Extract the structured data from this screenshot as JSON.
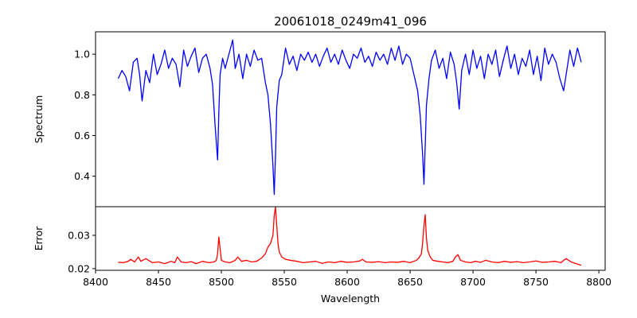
{
  "chart_data": [
    {
      "type": "line",
      "panel": "top",
      "title": "20061018_0249m41_096",
      "xlabel": "",
      "ylabel": "Spectrum",
      "xlim": [
        8400,
        8805
      ],
      "ylim": [
        0.25,
        1.11
      ],
      "xticks": [
        8400,
        8450,
        8500,
        8550,
        8600,
        8650,
        8700,
        8750,
        8800
      ],
      "yticks": [
        0.4,
        0.6,
        0.8,
        1.0
      ],
      "ytick_labels": [
        "0.4",
        "0.6",
        "0.8",
        "1.0"
      ],
      "color": "#0000ff",
      "series": [
        {
          "x": [
            8418,
            8421,
            8424,
            8427,
            8430,
            8433,
            8435,
            8437,
            8440,
            8443,
            8446,
            8449,
            8452,
            8455,
            8458,
            8461,
            8464,
            8467,
            8470,
            8473,
            8476,
            8479,
            8482,
            8485,
            8488,
            8491,
            8493,
            8495,
            8497,
            8498,
            8499,
            8501,
            8503,
            8506,
            8509,
            8511,
            8514,
            8517,
            8520,
            8523,
            8526,
            8529,
            8532,
            8535,
            8537,
            8539,
            8541,
            8542,
            8543,
            8544,
            8546,
            8548,
            8551,
            8554,
            8557,
            8560,
            8563,
            8566,
            8569,
            8572,
            8575,
            8578,
            8581,
            8584,
            8587,
            8590,
            8593,
            8596,
            8599,
            8602,
            8605,
            8608,
            8611,
            8614,
            8617,
            8620,
            8623,
            8626,
            8629,
            8632,
            8635,
            8638,
            8641,
            8644,
            8647,
            8650,
            8653,
            8656,
            8658,
            8660,
            8661,
            8662,
            8663,
            8665,
            8667,
            8670,
            8673,
            8676,
            8679,
            8682,
            8685,
            8687,
            8689,
            8691,
            8694,
            8697,
            8700,
            8703,
            8706,
            8709,
            8712,
            8715,
            8718,
            8721,
            8724,
            8727,
            8730,
            8733,
            8736,
            8739,
            8742,
            8745,
            8748,
            8751,
            8754,
            8757,
            8760,
            8763,
            8766,
            8769,
            8772,
            8774,
            8777,
            8780,
            8783,
            8786
          ],
          "y": [
            0.88,
            0.92,
            0.89,
            0.82,
            0.96,
            0.98,
            0.9,
            0.77,
            0.92,
            0.86,
            1.0,
            0.9,
            0.95,
            1.02,
            0.93,
            0.98,
            0.95,
            0.84,
            1.02,
            0.94,
            0.99,
            1.03,
            0.91,
            0.98,
            1.0,
            0.93,
            0.85,
            0.65,
            0.48,
            0.72,
            0.9,
            0.98,
            0.93,
            1.0,
            1.07,
            0.93,
            1.0,
            0.88,
            1.0,
            0.94,
            1.02,
            0.97,
            0.98,
            0.86,
            0.8,
            0.66,
            0.45,
            0.31,
            0.5,
            0.74,
            0.87,
            0.9,
            1.03,
            0.95,
            0.99,
            0.92,
            1.0,
            0.97,
            1.01,
            0.96,
            1.0,
            0.94,
            0.99,
            1.03,
            0.96,
            1.0,
            0.95,
            1.02,
            0.97,
            0.93,
            1.0,
            0.98,
            1.03,
            0.96,
            0.99,
            0.94,
            1.01,
            0.97,
            1.0,
            0.95,
            1.03,
            0.97,
            1.04,
            0.95,
            1.0,
            0.98,
            0.9,
            0.82,
            0.7,
            0.5,
            0.36,
            0.55,
            0.75,
            0.88,
            0.97,
            1.02,
            0.93,
            0.98,
            0.88,
            1.01,
            0.95,
            0.86,
            0.73,
            0.92,
            1.0,
            0.9,
            1.02,
            0.93,
            0.99,
            0.88,
            1.0,
            0.95,
            1.02,
            0.89,
            0.97,
            1.04,
            0.93,
            1.0,
            0.9,
            0.98,
            0.94,
            1.02,
            0.9,
            0.99,
            0.87,
            1.03,
            0.95,
            1.0,
            0.96,
            0.88,
            0.82,
            0.9,
            1.02,
            0.94,
            1.03,
            0.96
          ]
        }
      ]
    },
    {
      "type": "line",
      "panel": "bottom",
      "title": "",
      "xlabel": "Wavelength",
      "ylabel": "Error",
      "xlim": [
        8400,
        8805
      ],
      "ylim": [
        0.0195,
        0.0386
      ],
      "xticks": [
        8400,
        8450,
        8500,
        8550,
        8600,
        8650,
        8700,
        8750,
        8800
      ],
      "xtick_labels": [
        "8400",
        "8450",
        "8500",
        "8550",
        "8600",
        "8650",
        "8700",
        "8750",
        "8800"
      ],
      "yticks": [
        0.02,
        0.03
      ],
      "ytick_labels": [
        "0.02",
        "0.03"
      ],
      "color": "#ff0000",
      "series": [
        {
          "x": [
            8418,
            8422,
            8426,
            8428,
            8431,
            8434,
            8436,
            8440,
            8445,
            8450,
            8455,
            8460,
            8463,
            8465,
            8468,
            8472,
            8476,
            8480,
            8485,
            8490,
            8494,
            8496,
            8497,
            8498,
            8499,
            8500,
            8503,
            8507,
            8511,
            8513,
            8516,
            8520,
            8524,
            8528,
            8532,
            8535,
            8537,
            8539,
            8541,
            8542,
            8543,
            8544,
            8545,
            8546,
            8548,
            8551,
            8555,
            8560,
            8565,
            8570,
            8575,
            8580,
            8585,
            8590,
            8595,
            8600,
            8605,
            8610,
            8612,
            8615,
            8620,
            8625,
            8630,
            8635,
            8640,
            8645,
            8650,
            8655,
            8657,
            8659,
            8660,
            8661,
            8662,
            8663,
            8664,
            8666,
            8668,
            8672,
            8676,
            8680,
            8684,
            8686,
            8688,
            8690,
            8694,
            8698,
            8702,
            8706,
            8710,
            8715,
            8720,
            8725,
            8730,
            8735,
            8740,
            8745,
            8750,
            8755,
            8760,
            8765,
            8770,
            8772,
            8774,
            8778,
            8782,
            8786
          ],
          "y": [
            0.0219,
            0.0218,
            0.0222,
            0.0228,
            0.022,
            0.0235,
            0.0222,
            0.023,
            0.0218,
            0.022,
            0.0215,
            0.0222,
            0.0218,
            0.0235,
            0.022,
            0.0218,
            0.0221,
            0.0215,
            0.0222,
            0.0218,
            0.022,
            0.0225,
            0.0245,
            0.0295,
            0.026,
            0.0225,
            0.022,
            0.0218,
            0.0225,
            0.0235,
            0.0222,
            0.0225,
            0.022,
            0.0222,
            0.0232,
            0.0245,
            0.0265,
            0.0275,
            0.03,
            0.036,
            0.0385,
            0.033,
            0.0275,
            0.025,
            0.0235,
            0.0228,
            0.0225,
            0.0222,
            0.0218,
            0.022,
            0.0222,
            0.0216,
            0.022,
            0.0218,
            0.0222,
            0.0219,
            0.022,
            0.0223,
            0.0228,
            0.022,
            0.0219,
            0.0221,
            0.0218,
            0.022,
            0.0219,
            0.0222,
            0.0218,
            0.0225,
            0.0232,
            0.0245,
            0.028,
            0.033,
            0.0362,
            0.029,
            0.0255,
            0.0235,
            0.0225,
            0.0222,
            0.022,
            0.0218,
            0.0222,
            0.0235,
            0.0242,
            0.0225,
            0.022,
            0.0218,
            0.0222,
            0.0219,
            0.0225,
            0.022,
            0.0218,
            0.0222,
            0.0219,
            0.0221,
            0.0218,
            0.022,
            0.0223,
            0.0219,
            0.022,
            0.0222,
            0.0218,
            0.0225,
            0.023,
            0.022,
            0.0215,
            0.021
          ]
        }
      ]
    }
  ]
}
